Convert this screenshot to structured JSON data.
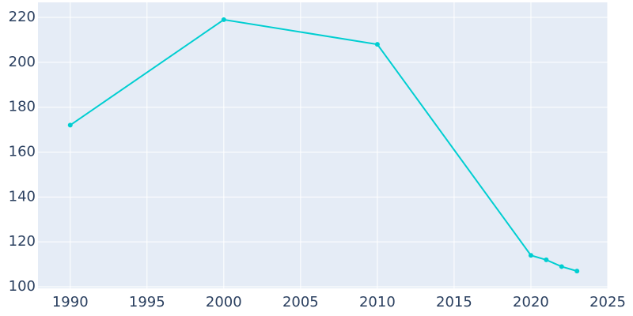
{
  "chart_data": {
    "type": "line",
    "x": [
      1990,
      2000,
      2010,
      2020,
      2021,
      2022,
      2023
    ],
    "series": [
      {
        "color": "#00ced1",
        "values": [
          172,
          219,
          208,
          114,
          112,
          109,
          107
        ]
      }
    ],
    "xlim": [
      1987.9,
      2025
    ],
    "xticks": [
      1990,
      1995,
      2000,
      2005,
      2010,
      2015,
      2020,
      2025
    ],
    "ylim": [
      99.3,
      226.7
    ],
    "yticks": [
      100,
      120,
      140,
      160,
      180,
      200,
      220
    ],
    "grid": true,
    "plot_background": "#e5ecf6"
  }
}
